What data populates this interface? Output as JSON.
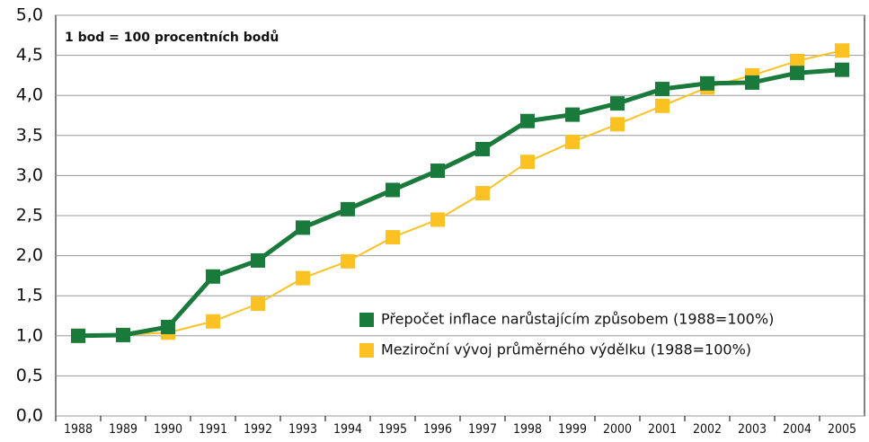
{
  "chart_data": {
    "type": "line",
    "annotation": "1 bod = 100 procentních bodů",
    "categories": [
      "1988",
      "1989",
      "1990",
      "1991",
      "1992",
      "1993",
      "1994",
      "1995",
      "1996",
      "1997",
      "1998",
      "1999",
      "2000",
      "2001",
      "2002",
      "2003",
      "2004",
      "2005"
    ],
    "series": [
      {
        "name": "Přepočet inflace narůstajícím způsobem (1988=100%)",
        "color": "#1a7a3c",
        "values": [
          1.0,
          1.01,
          1.11,
          1.74,
          1.94,
          2.35,
          2.58,
          2.82,
          3.06,
          3.33,
          3.68,
          3.76,
          3.9,
          4.08,
          4.15,
          4.16,
          4.28,
          4.32
        ]
      },
      {
        "name": "Meziroční vývoj průměrného výdělku (1988=100%)",
        "color": "#fcc224",
        "values": [
          1.0,
          1.01,
          1.04,
          1.18,
          1.4,
          1.72,
          1.93,
          2.23,
          2.45,
          2.78,
          3.17,
          3.42,
          3.64,
          3.87,
          4.1,
          4.25,
          4.43,
          4.56
        ]
      }
    ],
    "ylim": [
      0,
      5
    ],
    "yticks": [
      {
        "value": 0,
        "label": "0,0"
      },
      {
        "value": 0.5,
        "label": "0,5"
      },
      {
        "value": 1,
        "label": "1,0"
      },
      {
        "value": 1.5,
        "label": "1,5"
      },
      {
        "value": 2,
        "label": "2,0"
      },
      {
        "value": 2.5,
        "label": "2,5"
      },
      {
        "value": 3,
        "label": "3,0"
      },
      {
        "value": 3.5,
        "label": "3,5"
      },
      {
        "value": 4,
        "label": "4,0"
      },
      {
        "value": 4.5,
        "label": "4,5"
      },
      {
        "value": 5,
        "label": "5,0"
      }
    ],
    "grid": true
  }
}
